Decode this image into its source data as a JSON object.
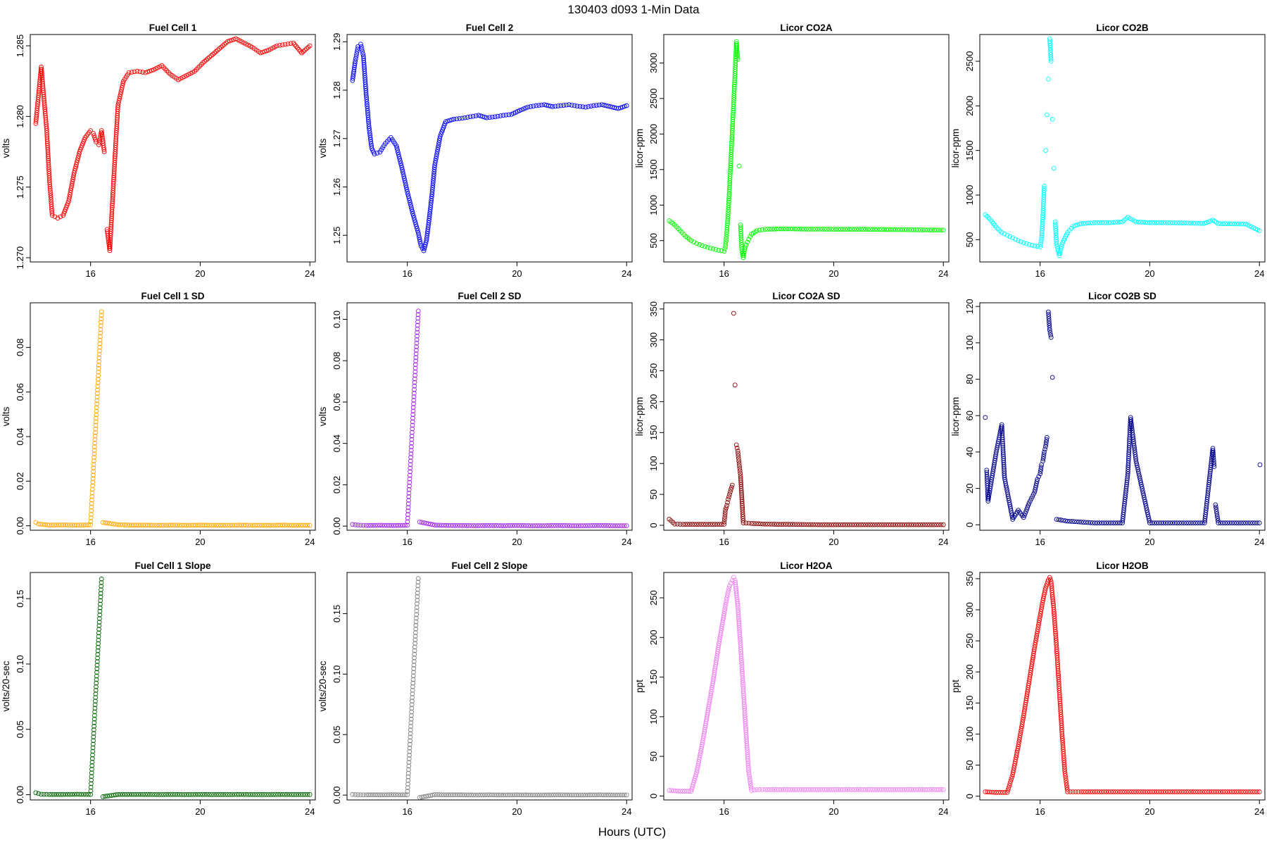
{
  "figure": {
    "title": "130403    d093    1-Min Data",
    "xlabel": "Hours (UTC)"
  },
  "chart_data": [
    {
      "type": "scatter",
      "title": "Fuel Cell 1",
      "ylabel": "volts",
      "color": "#ff0000",
      "xlim": [
        13.8,
        24.2
      ],
      "ylim": [
        1.2697,
        1.2858
      ],
      "xticks": [
        16,
        20,
        24
      ],
      "yticks": [
        1.27,
        1.275,
        1.28,
        1.285
      ],
      "ytick_labels": [
        "1.270",
        "1.275",
        "1.280",
        "1.285"
      ],
      "x": [
        14,
        14.2,
        14.4,
        14.5,
        14.6,
        14.8,
        15,
        15.2,
        15.4,
        15.6,
        15.8,
        16,
        16.1,
        16.2,
        16.3,
        16.4,
        16.5,
        16.6,
        16.7,
        16.8,
        16.9,
        17,
        17.2,
        17.4,
        17.7,
        18,
        18.3,
        18.6,
        18.9,
        19.2,
        19.5,
        19.8,
        20.1,
        20.4,
        20.7,
        21,
        21.3,
        21.6,
        21.9,
        22.2,
        22.5,
        22.8,
        23.1,
        23.4,
        23.7,
        24
      ],
      "y": [
        1.2795,
        1.2835,
        1.279,
        1.2755,
        1.273,
        1.2728,
        1.273,
        1.274,
        1.276,
        1.2775,
        1.2785,
        1.279,
        1.2788,
        1.2782,
        1.278,
        1.279,
        1.2775,
        1.272,
        1.2705,
        1.274,
        1.2775,
        1.2808,
        1.2825,
        1.2831,
        1.2832,
        1.2831,
        1.2833,
        1.2836,
        1.283,
        1.2826,
        1.2829,
        1.2832,
        1.2838,
        1.2843,
        1.2848,
        1.2853,
        1.2855,
        1.2852,
        1.2849,
        1.2845,
        1.2847,
        1.285,
        1.2851,
        1.2852,
        1.2845,
        1.285
      ]
    },
    {
      "type": "scatter",
      "title": "Fuel Cell 2",
      "ylabel": "volts",
      "color": "#0000ff",
      "xlim": [
        13.8,
        24.2
      ],
      "ylim": [
        1.2445,
        1.2915
      ],
      "xticks": [
        16,
        20,
        24
      ],
      "yticks": [
        1.25,
        1.26,
        1.27,
        1.28,
        1.29
      ],
      "ytick_labels": [
        "1.25",
        "1.26",
        "1.27",
        "1.28",
        "1.29"
      ],
      "x": [
        14,
        14.1,
        14.2,
        14.3,
        14.4,
        14.5,
        14.6,
        14.7,
        14.8,
        15,
        15.2,
        15.4,
        15.6,
        15.8,
        16,
        16.2,
        16.4,
        16.5,
        16.6,
        16.7,
        16.8,
        16.9,
        17,
        17.2,
        17.4,
        17.7,
        18,
        18.3,
        18.6,
        18.9,
        19.2,
        19.5,
        19.8,
        20.1,
        20.4,
        20.7,
        21,
        21.3,
        21.6,
        21.9,
        22.2,
        22.5,
        22.8,
        23.1,
        23.4,
        23.7,
        24
      ],
      "y": [
        1.282,
        1.286,
        1.289,
        1.2895,
        1.287,
        1.279,
        1.2725,
        1.268,
        1.2668,
        1.2672,
        1.269,
        1.2702,
        1.2685,
        1.264,
        1.259,
        1.2545,
        1.2505,
        1.2478,
        1.2468,
        1.249,
        1.2535,
        1.2585,
        1.2645,
        1.2705,
        1.2735,
        1.274,
        1.2742,
        1.2745,
        1.2748,
        1.2743,
        1.2745,
        1.2748,
        1.275,
        1.2758,
        1.2765,
        1.2768,
        1.277,
        1.2766,
        1.2768,
        1.277,
        1.2767,
        1.2765,
        1.2768,
        1.277,
        1.2766,
        1.2762,
        1.2768
      ]
    },
    {
      "type": "scatter",
      "title": "Licor CO2A",
      "ylabel": "licor-ppm",
      "color": "#00ff00",
      "xlim": [
        13.8,
        24.2
      ],
      "ylim": [
        200,
        3400
      ],
      "xticks": [
        16,
        20,
        24
      ],
      "yticks": [
        500,
        1000,
        1500,
        2000,
        2500,
        3000
      ],
      "ytick_labels": [
        "500",
        "1000",
        "1500",
        "2000",
        "2500",
        "3000"
      ],
      "x": [
        14,
        14.2,
        14.4,
        14.6,
        14.8,
        15,
        15.2,
        15.4,
        15.6,
        15.8,
        16,
        16.05,
        16.1,
        16.15,
        16.2,
        16.25,
        16.3,
        16.35,
        16.4,
        16.45,
        16.5,
        16.55,
        16.6,
        16.65,
        16.7,
        16.75,
        16.8,
        16.9,
        17,
        17.2,
        17.5,
        18,
        18.5,
        19,
        19.5,
        20,
        20.5,
        21,
        21.5,
        22,
        22.5,
        23,
        23.5,
        24
      ],
      "y": [
        780,
        720,
        640,
        560,
        500,
        460,
        430,
        405,
        385,
        365,
        350,
        420,
        620,
        900,
        1250,
        1650,
        2050,
        2450,
        2850,
        3300,
        3050,
        1550,
        720,
        350,
        260,
        380,
        440,
        520,
        590,
        640,
        660,
        665,
        665,
        662,
        662,
        660,
        660,
        660,
        658,
        656,
        655,
        652,
        650,
        648
      ]
    },
    {
      "type": "scatter",
      "title": "Licor CO2B",
      "ylabel": "licor-ppm",
      "color": "#00ffff",
      "xlim": [
        13.8,
        24.2
      ],
      "ylim": [
        250,
        2800
      ],
      "xticks": [
        16,
        20,
        24
      ],
      "yticks": [
        500,
        1000,
        1500,
        2000,
        2500
      ],
      "ytick_labels": [
        "500",
        "1000",
        "1500",
        "2000",
        "2500"
      ],
      "x": [
        14,
        14.2,
        14.4,
        14.6,
        14.8,
        15,
        15.2,
        15.4,
        15.6,
        15.8,
        16,
        16.05,
        16.1,
        16.15,
        16.2,
        16.25,
        16.3,
        16.35,
        16.4,
        16.45,
        16.5,
        16.55,
        16.6,
        16.7,
        16.8,
        17,
        17.2,
        17.5,
        18,
        18.5,
        19,
        19.2,
        19.5,
        20,
        20.5,
        21,
        21.5,
        22,
        22.3,
        22.5,
        23,
        23.5,
        24
      ],
      "y": [
        780,
        720,
        640,
        580,
        550,
        520,
        490,
        465,
        445,
        430,
        420,
        500,
        750,
        1100,
        1500,
        1900,
        2300,
        2750,
        2500,
        1850,
        1300,
        700,
        450,
        320,
        450,
        580,
        650,
        680,
        690,
        690,
        700,
        750,
        700,
        690,
        690,
        688,
        685,
        682,
        720,
        680,
        678,
        675,
        600
      ]
    },
    {
      "type": "scatter",
      "title": "Fuel Cell 1 SD",
      "ylabel": "volts",
      "color": "#ffa500",
      "xlim": [
        13.8,
        24.2
      ],
      "ylim": [
        -0.002,
        0.1
      ],
      "xticks": [
        16,
        20,
        24
      ],
      "yticks": [
        0,
        0.02,
        0.04,
        0.06,
        0.08
      ],
      "ytick_labels": [
        "0.00",
        "0.02",
        "0.04",
        "0.06",
        "0.08"
      ],
      "x": [
        14,
        14.1,
        14.5,
        15,
        15.5,
        16,
        16.4,
        16.45,
        17,
        17.5,
        18,
        18.5,
        19,
        19.5,
        20,
        20.5,
        21,
        21.5,
        22,
        22.5,
        23,
        23.5,
        24
      ],
      "y": [
        0.0015,
        0.0008,
        0.0003,
        0.0004,
        0.0003,
        0.0004,
        0.096,
        0.0015,
        0.0005,
        0.0003,
        0.0003,
        0.0002,
        0.0003,
        0.0002,
        0.0003,
        0.0002,
        0.0002,
        0.0003,
        0.0002,
        0.0002,
        0.0003,
        0.0002,
        0.0002
      ]
    },
    {
      "type": "scatter",
      "title": "Fuel Cell 2 SD",
      "ylabel": "volts",
      "color": "#a020f0",
      "xlim": [
        13.8,
        24.2
      ],
      "ylim": [
        -0.002,
        0.108
      ],
      "xticks": [
        16,
        20,
        24
      ],
      "yticks": [
        0,
        0.02,
        0.04,
        0.06,
        0.08,
        0.1
      ],
      "ytick_labels": [
        "0.00",
        "0.02",
        "0.04",
        "0.06",
        "0.08",
        "0.10"
      ],
      "x": [
        14,
        14.2,
        14.5,
        15,
        15.5,
        16,
        16.4,
        16.45,
        17,
        17.5,
        18,
        18.5,
        19,
        19.5,
        20,
        20.5,
        21,
        21.5,
        22,
        22.5,
        23,
        23.5,
        24
      ],
      "y": [
        0.0008,
        0.0005,
        0.0003,
        0.0004,
        0.0003,
        0.0004,
        0.104,
        0.002,
        0.0005,
        0.0003,
        0.0003,
        0.0002,
        0.0003,
        0.0002,
        0.0003,
        0.0002,
        0.0002,
        0.0003,
        0.0002,
        0.0002,
        0.0003,
        0.0002,
        0.0002
      ]
    },
    {
      "type": "scatter",
      "title": "Licor CO2A SD",
      "ylabel": "licor-ppm",
      "color": "#8b0000",
      "xlim": [
        13.8,
        24.2
      ],
      "ylim": [
        -8,
        360
      ],
      "xticks": [
        16,
        20,
        24
      ],
      "yticks": [
        0,
        50,
        100,
        150,
        200,
        250,
        300,
        350
      ],
      "ytick_labels": [
        "0",
        "50",
        "100",
        "150",
        "200",
        "250",
        "300",
        "350"
      ],
      "x": [
        14,
        14.2,
        14.5,
        15,
        15.5,
        16,
        16.05,
        16.1,
        16.15,
        16.2,
        16.25,
        16.3,
        16.35,
        16.4,
        16.45,
        16.5,
        16.55,
        16.6,
        16.7,
        17,
        17.5,
        18,
        18.5,
        19,
        19.5,
        20,
        20.5,
        21,
        21.5,
        22,
        22.5,
        23,
        23.5,
        24
      ],
      "y": [
        10,
        2,
        1.5,
        1.5,
        1.5,
        1.5,
        25,
        32,
        42,
        50,
        58,
        65,
        343,
        227,
        130,
        120,
        100,
        80,
        4,
        3,
        2,
        1.5,
        1.5,
        1.2,
        1,
        1,
        1,
        1,
        1,
        1,
        1,
        1,
        1,
        1
      ]
    },
    {
      "type": "scatter",
      "title": "Licor CO2B SD",
      "ylabel": "licor-ppm",
      "color": "#00008b",
      "xlim": [
        13.8,
        24.2
      ],
      "ylim": [
        -3,
        122
      ],
      "xticks": [
        16,
        20,
        24
      ],
      "yticks": [
        0,
        20,
        40,
        60,
        80,
        100,
        120
      ],
      "ytick_labels": [
        "0",
        "20",
        "40",
        "60",
        "80",
        "100",
        "120"
      ],
      "x": [
        14,
        14.05,
        14.1,
        14.4,
        14.6,
        14.7,
        15,
        15.2,
        15.4,
        15.6,
        15.8,
        15.9,
        16,
        16.05,
        16.1,
        16.15,
        16.2,
        16.25,
        16.3,
        16.35,
        16.4,
        16.45,
        16.6,
        17,
        17.5,
        18,
        18.5,
        19,
        19.2,
        19.3,
        19.5,
        20,
        20.5,
        21,
        21.5,
        22,
        22.3,
        22.35,
        22.4,
        22.5,
        23,
        23.5,
        24,
        24.02
      ],
      "y": [
        59,
        30,
        13,
        40,
        55,
        26,
        3,
        8,
        4,
        12,
        18,
        25,
        28,
        33,
        35,
        40,
        43,
        48,
        117,
        107,
        103,
        81,
        3,
        2,
        1.5,
        1,
        1,
        1,
        28,
        59,
        35,
        1,
        1,
        1,
        1,
        1,
        42,
        32,
        11,
        1,
        1,
        1,
        1,
        33
      ]
    },
    {
      "type": "scatter",
      "title": "Fuel Cell 1 Slope",
      "ylabel": "volts/20-sec",
      "color": "#006400",
      "xlim": [
        13.8,
        24.2
      ],
      "ylim": [
        -0.004,
        0.17
      ],
      "xticks": [
        16,
        20,
        24
      ],
      "yticks": [
        0,
        0.05,
        0.1,
        0.15
      ],
      "ytick_labels": [
        "0.00",
        "0.05",
        "0.10",
        "0.15"
      ],
      "x": [
        14,
        14.2,
        14.5,
        15,
        15.5,
        16,
        16.4,
        16.45,
        17,
        17.5,
        18,
        18.5,
        19,
        19.5,
        20,
        20.5,
        21,
        21.5,
        22,
        22.5,
        23,
        23.5,
        24
      ],
      "y": [
        0.0015,
        0.0003,
        0.0002,
        0.0002,
        0.0003,
        0.0002,
        0.165,
        -0.0015,
        0.0002,
        0.0002,
        0.0002,
        0.0001,
        0.0002,
        0.0001,
        0.0002,
        0.0001,
        0.0001,
        0.0002,
        0.0001,
        0.0001,
        0.0002,
        0.0001,
        0.0001
      ]
    },
    {
      "type": "scatter",
      "title": "Fuel Cell 2 Slope",
      "ylabel": "volts/20-sec",
      "color": "#808080",
      "xlim": [
        13.8,
        24.2
      ],
      "ylim": [
        -0.004,
        0.184
      ],
      "xticks": [
        16,
        20,
        24
      ],
      "yticks": [
        0,
        0.05,
        0.1,
        0.15
      ],
      "ytick_labels": [
        "0.00",
        "0.05",
        "0.10",
        "0.15"
      ],
      "x": [
        14,
        14.2,
        14.5,
        15,
        15.5,
        16,
        16.4,
        16.45,
        17,
        17.5,
        18,
        18.5,
        19,
        19.5,
        20,
        20.5,
        21,
        21.5,
        22,
        22.5,
        23,
        23.5,
        24
      ],
      "y": [
        0.0005,
        0.0003,
        0.0002,
        0.0002,
        0.0003,
        0.0002,
        0.179,
        -0.002,
        0.0004,
        0.0002,
        0.0002,
        0.0001,
        0.0002,
        0.0001,
        0.0002,
        0.0001,
        0.0001,
        0.0002,
        0.0001,
        0.0001,
        0.0002,
        0.0001,
        0.0001
      ]
    },
    {
      "type": "scatter",
      "title": "Licor H2OA",
      "ylabel": "ppt",
      "color": "#ee82ee",
      "xlim": [
        13.8,
        24.2
      ],
      "ylim": [
        -5,
        282
      ],
      "xticks": [
        16,
        20,
        24
      ],
      "yticks": [
        0,
        50,
        100,
        150,
        200,
        250
      ],
      "ytick_labels": [
        "0",
        "50",
        "100",
        "150",
        "200",
        "250"
      ],
      "x": [
        14,
        14.4,
        14.8,
        15,
        15.2,
        15.4,
        15.6,
        15.8,
        16,
        16.1,
        16.2,
        16.3,
        16.35,
        16.4,
        16.5,
        16.6,
        16.7,
        16.8,
        16.9,
        17,
        17.2,
        17.5,
        18,
        18.5,
        19,
        19.5,
        20,
        20.5,
        21,
        21.5,
        22,
        22.5,
        23,
        23.5,
        24
      ],
      "y": [
        7,
        6,
        6,
        30,
        65,
        105,
        145,
        190,
        230,
        250,
        265,
        272,
        276,
        272,
        240,
        190,
        135,
        80,
        30,
        7,
        8,
        8,
        8,
        8,
        8,
        8,
        8,
        8,
        8,
        8,
        8,
        8,
        8,
        8,
        8
      ]
    },
    {
      "type": "scatter",
      "title": "Licor H2OB",
      "ylabel": "ppt",
      "color": "#ff0000",
      "xlim": [
        13.8,
        24.2
      ],
      "ylim": [
        -6,
        360
      ],
      "xticks": [
        16,
        20,
        24
      ],
      "yticks": [
        0,
        50,
        100,
        150,
        200,
        250,
        300,
        350
      ],
      "ytick_labels": [
        "0",
        "50",
        "100",
        "150",
        "200",
        "250",
        "300",
        "350"
      ],
      "x": [
        14,
        14.4,
        14.8,
        15,
        15.2,
        15.4,
        15.6,
        15.8,
        16,
        16.1,
        16.2,
        16.3,
        16.35,
        16.4,
        16.5,
        16.6,
        16.7,
        16.8,
        16.9,
        17,
        17.2,
        17.5,
        18,
        18.5,
        19,
        19.5,
        20,
        20.5,
        21,
        21.5,
        22,
        22.5,
        23,
        23.5,
        24
      ],
      "y": [
        7,
        6,
        6,
        35,
        80,
        130,
        185,
        240,
        290,
        315,
        335,
        348,
        352,
        345,
        300,
        240,
        170,
        100,
        40,
        7,
        7,
        7,
        7,
        7,
        7,
        7,
        7,
        7,
        7,
        7,
        7,
        7,
        7,
        7,
        7
      ]
    }
  ]
}
